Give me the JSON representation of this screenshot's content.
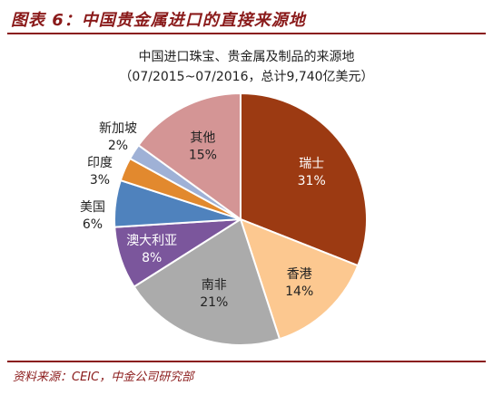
{
  "figure": {
    "title": "图表 6：中国贵金属进口的直接来源地",
    "source": "资料来源：CEIC，中金公司研究部"
  },
  "chart_data": {
    "type": "pie",
    "title": "中国进口珠宝、贵金属及制品的来源地",
    "subtitle": "（07/2015~07/2016，总计9,740亿美元）",
    "slices": [
      {
        "label": "瑞士",
        "value": 31,
        "value_label": "31%",
        "color": "#9c3a12",
        "text_color": "#ffffff",
        "label_side": "inside"
      },
      {
        "label": "香港",
        "value": 14,
        "value_label": "14%",
        "color": "#fcc890",
        "text_color": "#222222",
        "label_side": "inside"
      },
      {
        "label": "南非",
        "value": 21,
        "value_label": "21%",
        "color": "#ababab",
        "text_color": "#222222",
        "label_side": "inside"
      },
      {
        "label": "澳大利亚",
        "value": 8,
        "value_label": "8%",
        "color": "#7b569c",
        "text_color": "#ffffff",
        "label_side": "inside"
      },
      {
        "label": "美国",
        "value": 6,
        "value_label": "6%",
        "color": "#4f82bd",
        "text_color": "#222222",
        "label_side": "outside"
      },
      {
        "label": "印度",
        "value": 3,
        "value_label": "3%",
        "color": "#e2892e",
        "text_color": "#222222",
        "label_side": "outside"
      },
      {
        "label": "新加坡",
        "value": 2,
        "value_label": "2%",
        "color": "#9fb1d6",
        "text_color": "#222222",
        "label_side": "outside"
      },
      {
        "label": "其他",
        "value": 15,
        "value_label": "15%",
        "color": "#d49595",
        "text_color": "#222222",
        "label_side": "inside"
      }
    ]
  }
}
